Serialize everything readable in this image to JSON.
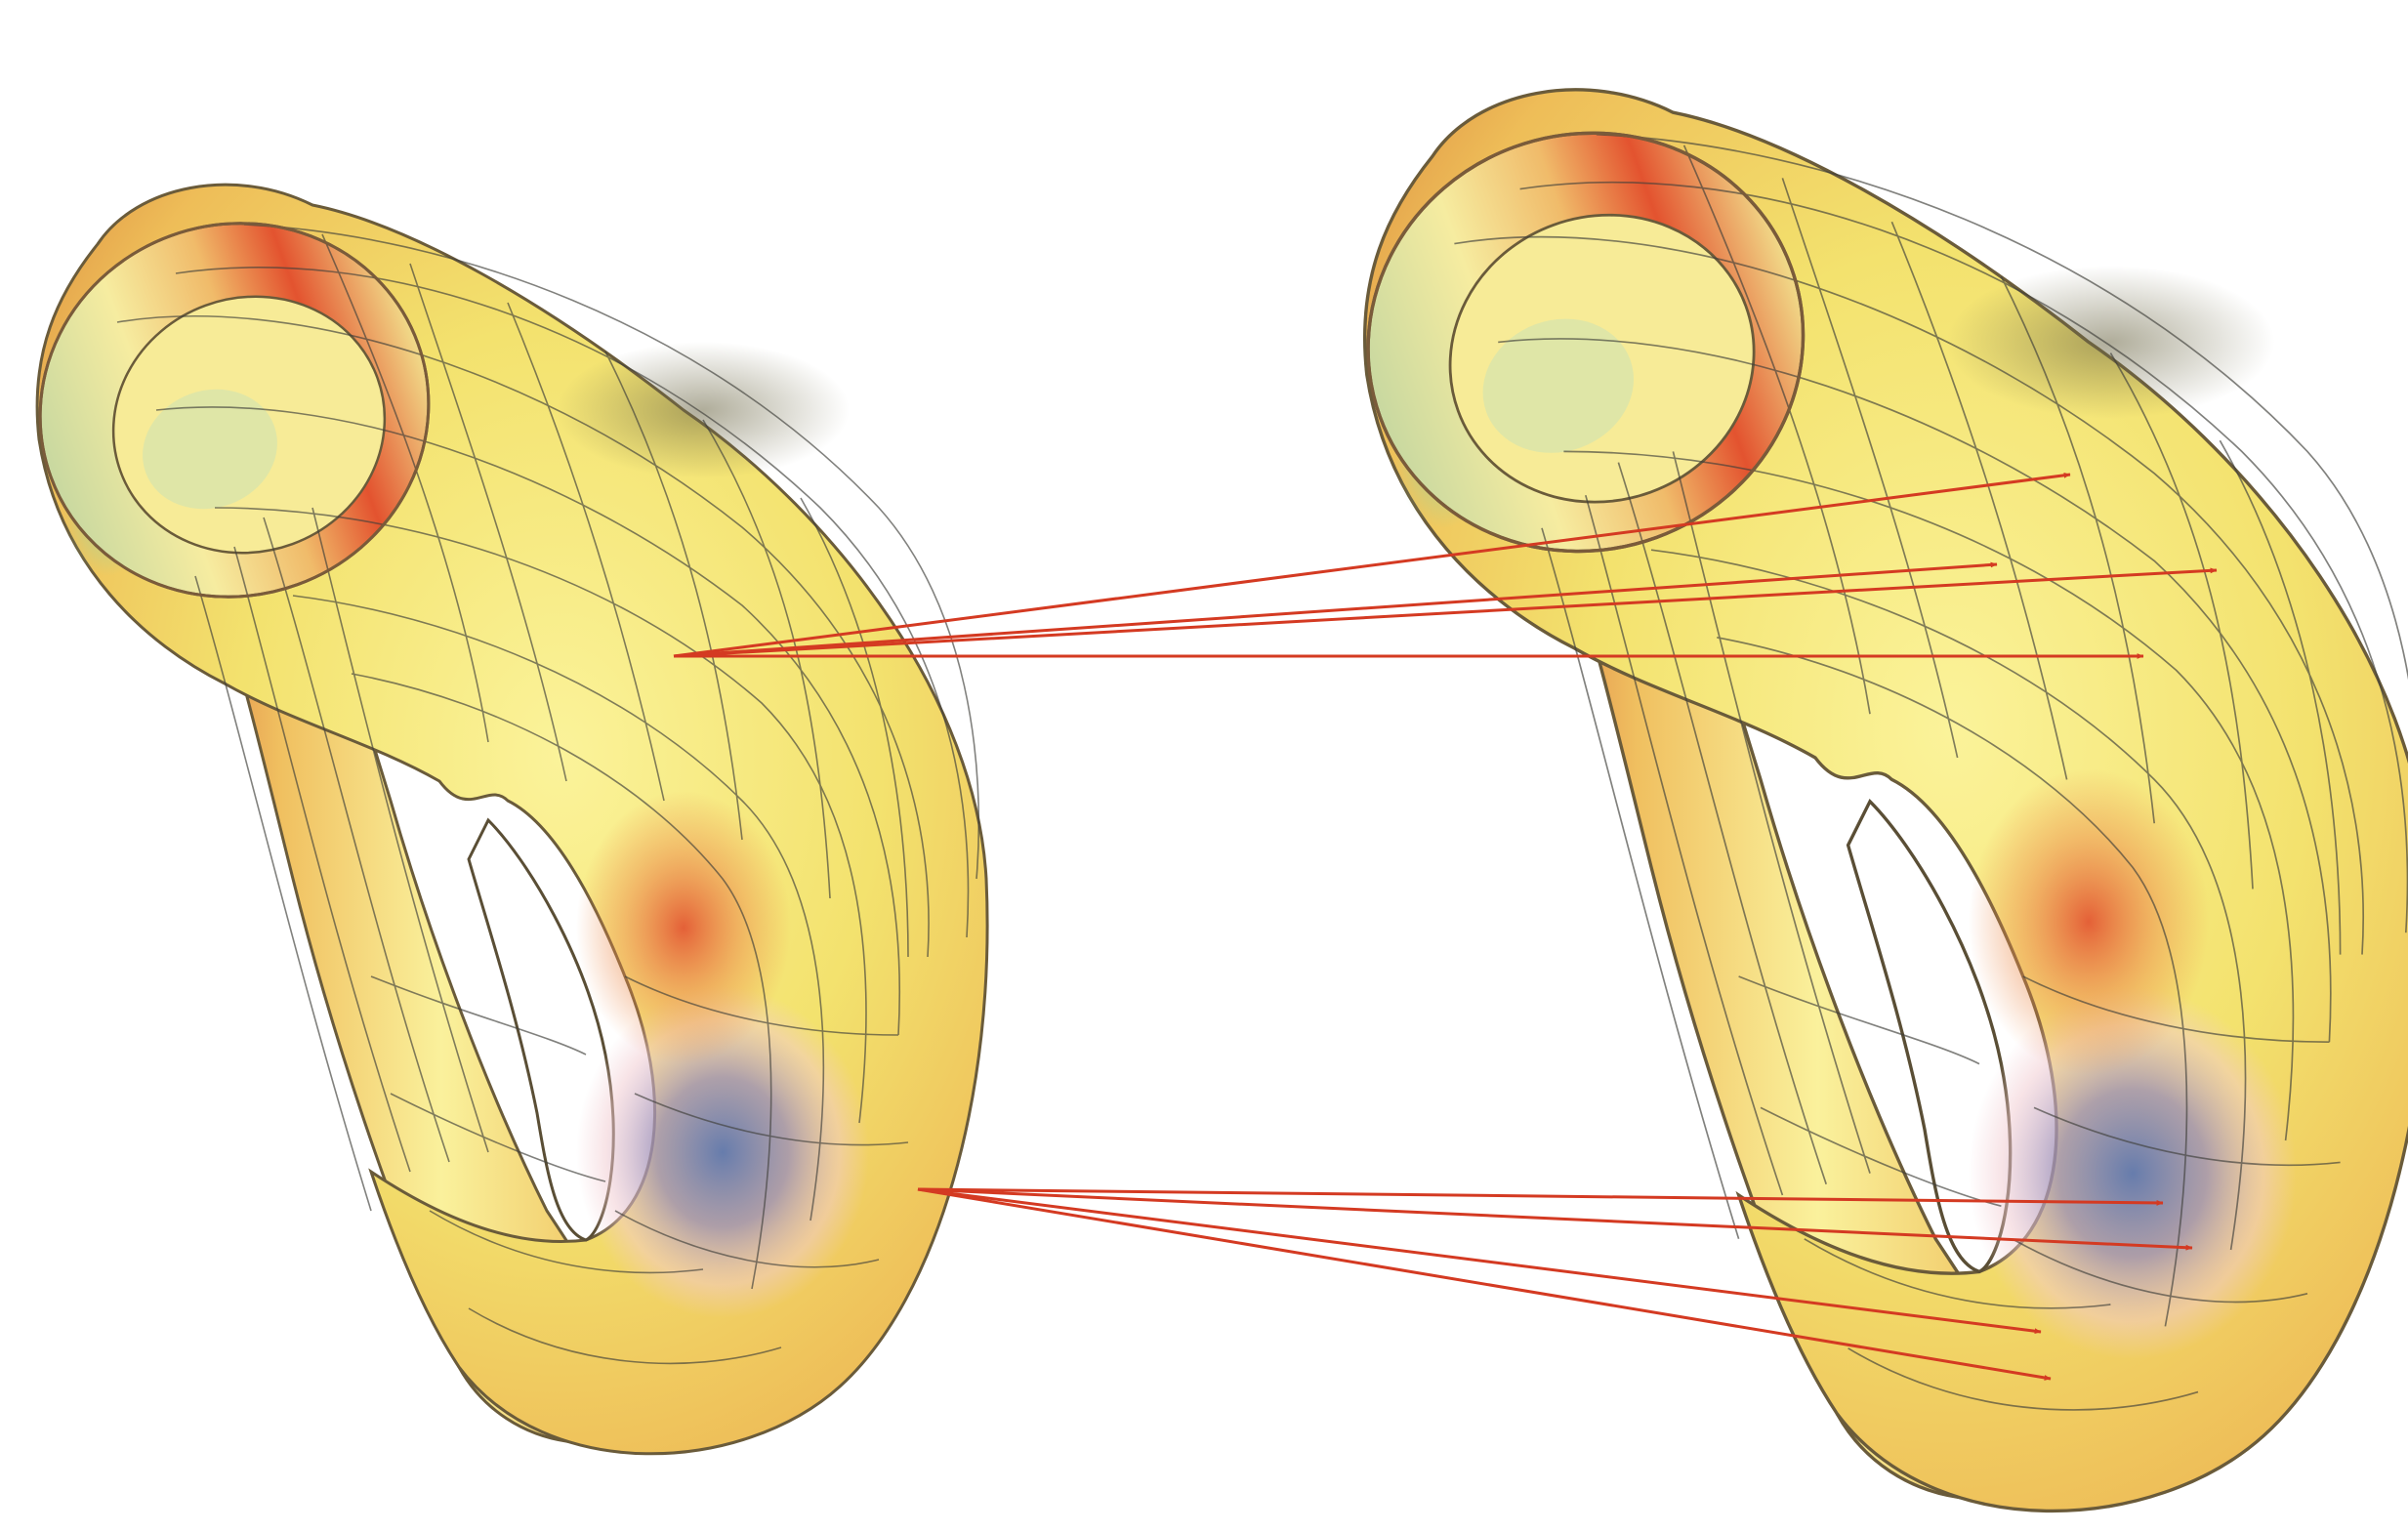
{
  "figure": {
    "description_visible_text": "",
    "surfaces": [
      {
        "name": "klein-bottle-left",
        "role": "source"
      },
      {
        "name": "klein-bottle-right",
        "role": "target"
      }
    ],
    "correspondences": [
      {
        "group": "upper",
        "count": 4
      },
      {
        "group": "lower",
        "count": 4
      }
    ],
    "colors": {
      "surface_base": "#f6ec7a",
      "surface_warm": "#e8663a",
      "surface_cool": "#6d7fb5",
      "surface_pink": "#f1c6cc",
      "surface_green": "#bfe6b4",
      "mesh_line": "#3f3f3a",
      "arrow": "#d43a22",
      "background": "#ffffff"
    }
  }
}
